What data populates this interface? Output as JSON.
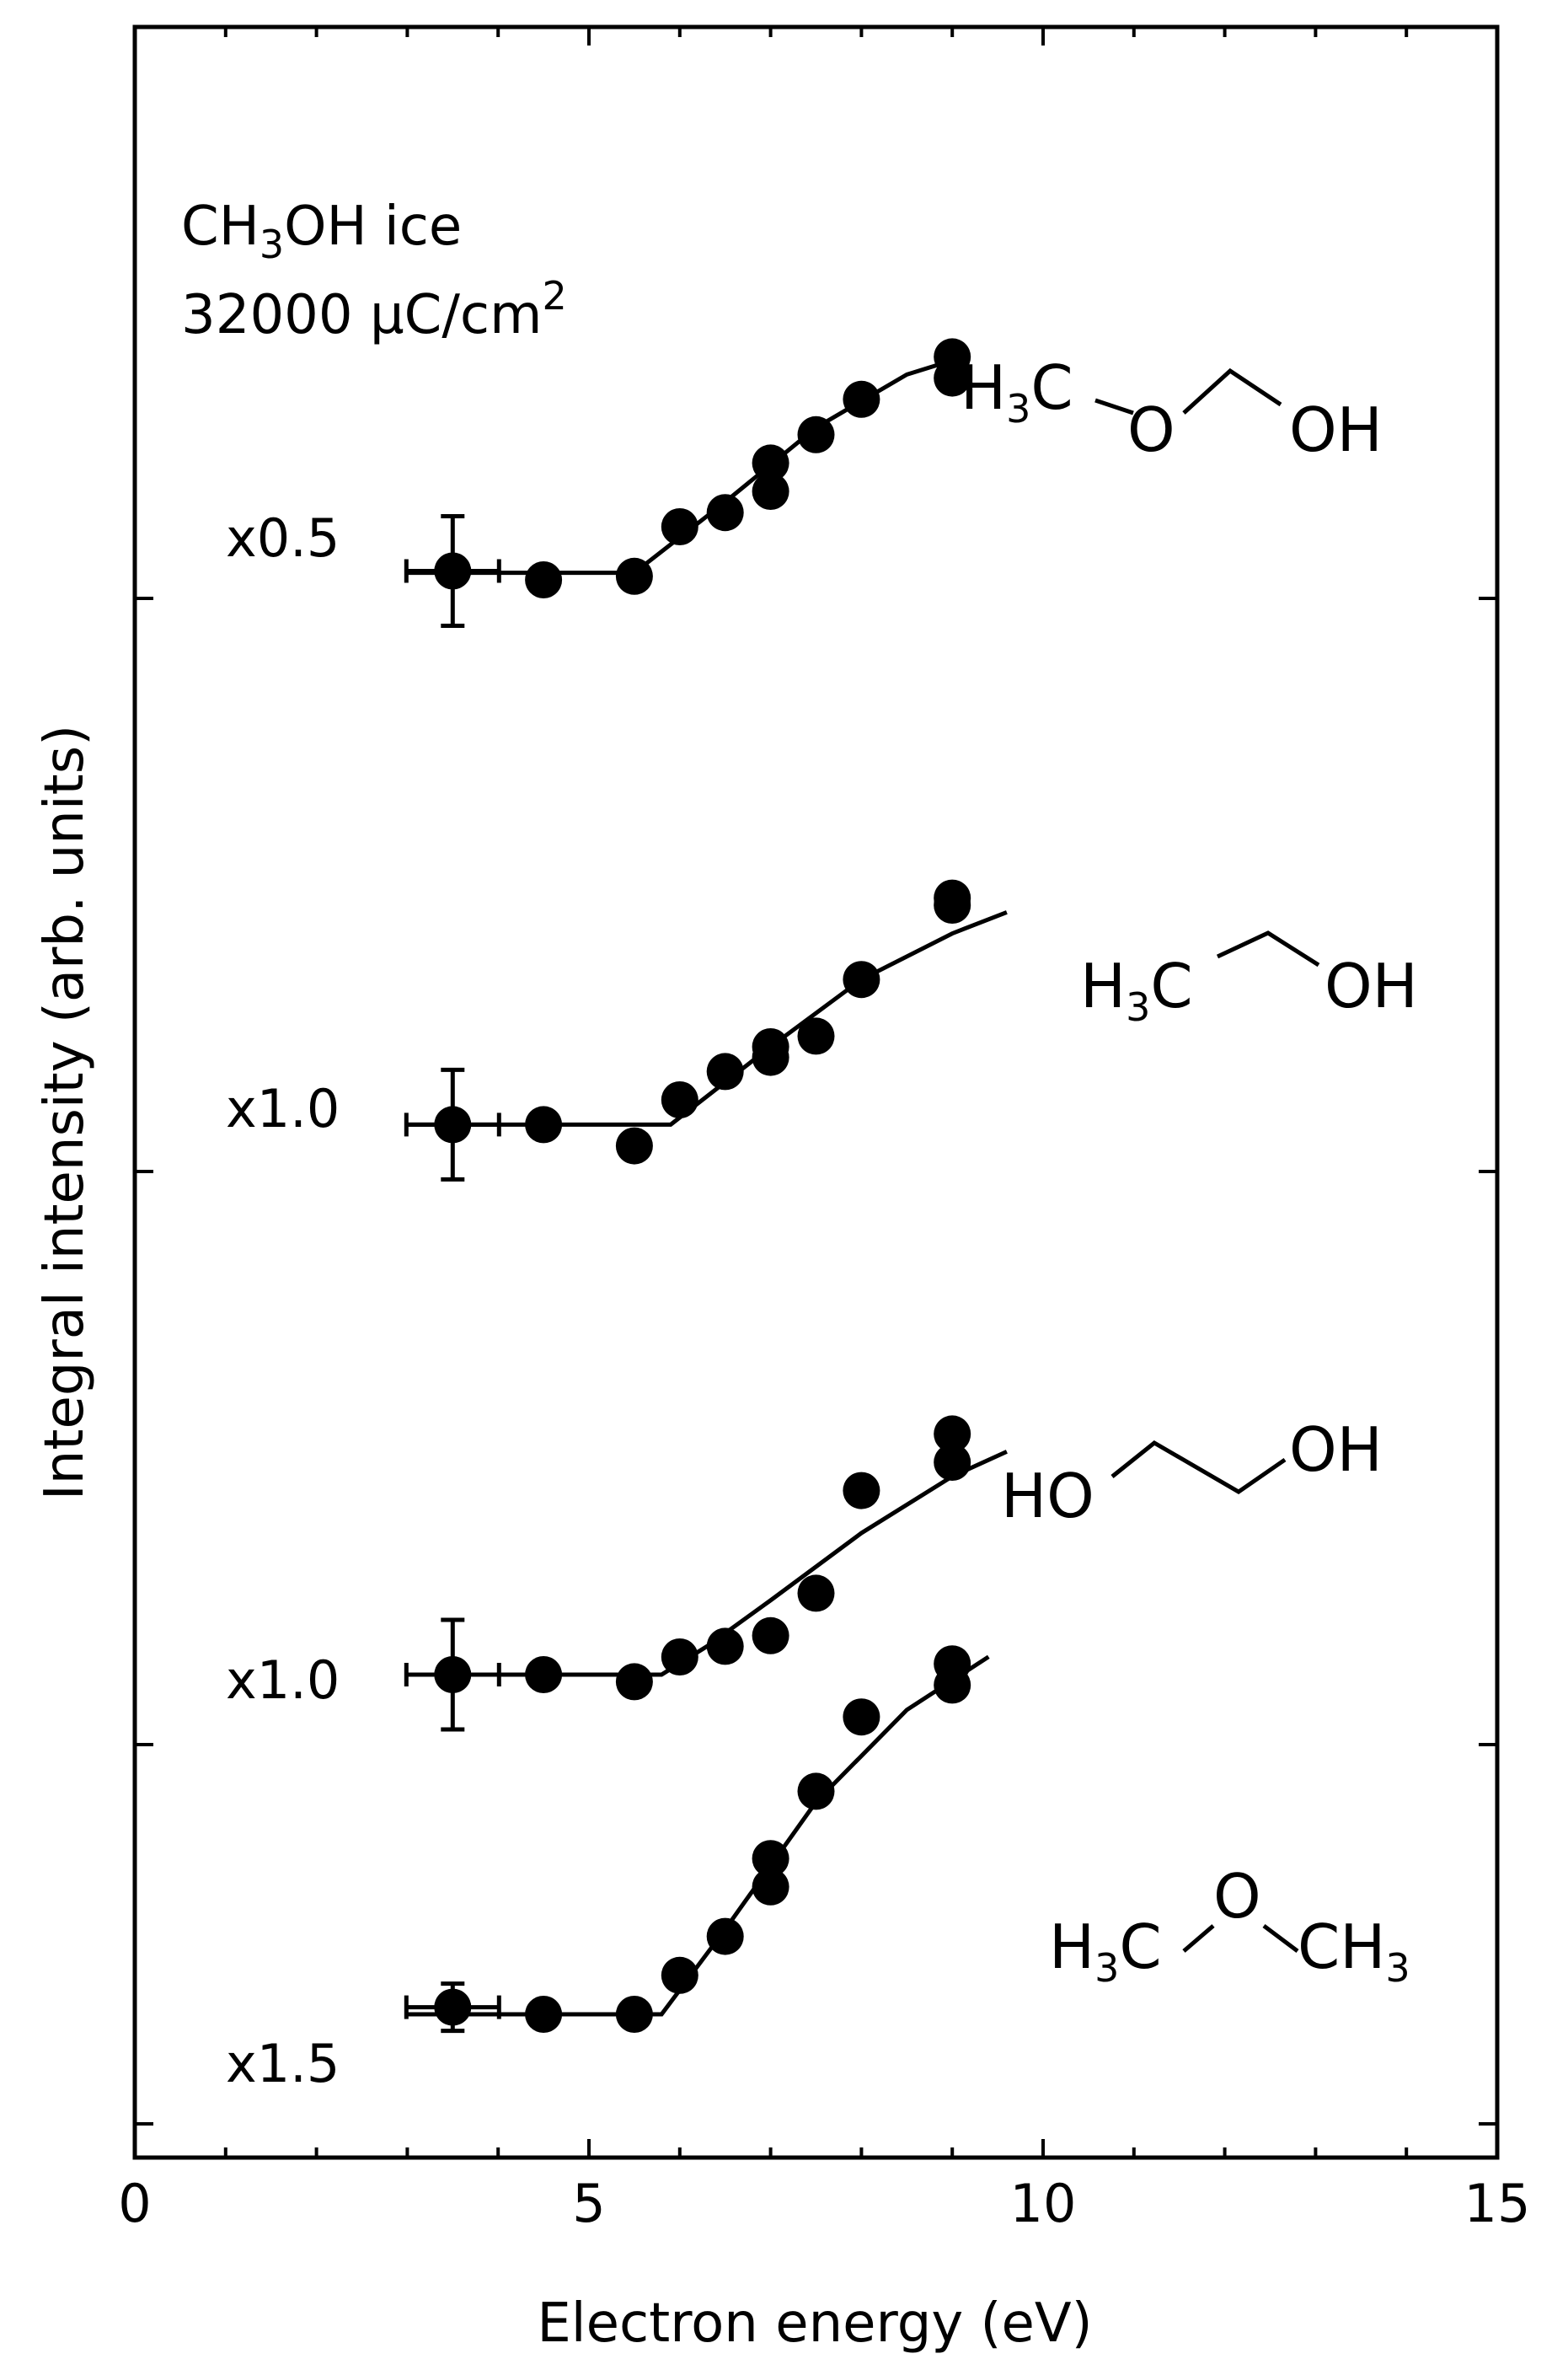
{
  "chart_data": {
    "type": "scatter",
    "xlabel": "Electron energy (eV)",
    "ylabel": "Integral intensity (arb. units)",
    "xlim": [
      0,
      15
    ],
    "xticks": [
      "0",
      "5",
      "10",
      "15"
    ],
    "grid": false,
    "annotation": {
      "sample_line1_main": "CH",
      "sample_line1_sub": "3",
      "sample_line1_rest": "OH ice",
      "sample_line2_main": "32000 μC/cm",
      "sample_line2_sup": "2"
    },
    "panels": [
      {
        "scale": "x0.5",
        "molecule": {
          "h3c_main": "H",
          "h3c_sub": "3",
          "h3c_c": "C",
          "o": "O",
          "oh": "OH"
        },
        "points": [
          {
            "x": 3.5,
            "y": 0.025
          },
          {
            "x": 4.5,
            "y": 0.0
          },
          {
            "x": 5.5,
            "y": 0.01
          },
          {
            "x": 6.0,
            "y": 0.15
          },
          {
            "x": 6.5,
            "y": 0.19
          },
          {
            "x": 7.0,
            "y": 0.25
          },
          {
            "x": 7.0,
            "y": 0.33
          },
          {
            "x": 7.5,
            "y": 0.41
          },
          {
            "x": 8.0,
            "y": 0.51
          },
          {
            "x": 9.0,
            "y": 0.57
          },
          {
            "x": 9.0,
            "y": 0.63
          }
        ],
        "fit": [
          [
            3.0,
            0.02
          ],
          [
            5.5,
            0.02
          ],
          [
            6.5,
            0.22
          ],
          [
            7.5,
            0.43
          ],
          [
            8.5,
            0.58
          ],
          [
            9.0,
            0.62
          ]
        ]
      },
      {
        "scale": "x1.0",
        "molecule": {
          "h3c_main": "H",
          "h3c_sub": "3",
          "h3c_c": "C",
          "oh": "OH"
        },
        "points": [
          {
            "x": 3.5,
            "y": 0.08
          },
          {
            "x": 4.5,
            "y": 0.08
          },
          {
            "x": 5.5,
            "y": 0.02
          },
          {
            "x": 6.0,
            "y": 0.15
          },
          {
            "x": 6.5,
            "y": 0.23
          },
          {
            "x": 7.0,
            "y": 0.27
          },
          {
            "x": 7.0,
            "y": 0.3
          },
          {
            "x": 7.5,
            "y": 0.33
          },
          {
            "x": 8.0,
            "y": 0.49
          },
          {
            "x": 9.0,
            "y": 0.7
          },
          {
            "x": 9.0,
            "y": 0.72
          }
        ],
        "fit": [
          [
            3.0,
            0.08
          ],
          [
            5.9,
            0.08
          ],
          [
            7.0,
            0.3
          ],
          [
            8.0,
            0.49
          ],
          [
            9.0,
            0.62
          ],
          [
            9.6,
            0.68
          ]
        ]
      },
      {
        "scale": "x1.0",
        "molecule": {
          "ho": "HO",
          "oh": "OH"
        },
        "points": [
          {
            "x": 3.5,
            "y": 0.15
          },
          {
            "x": 4.5,
            "y": 0.15
          },
          {
            "x": 5.5,
            "y": 0.13
          },
          {
            "x": 6.0,
            "y": 0.2
          },
          {
            "x": 6.5,
            "y": 0.23
          },
          {
            "x": 7.0,
            "y": 0.26
          },
          {
            "x": 7.5,
            "y": 0.38
          },
          {
            "x": 8.0,
            "y": 0.67
          },
          {
            "x": 9.0,
            "y": 0.75
          },
          {
            "x": 9.0,
            "y": 0.83
          }
        ],
        "fit": [
          [
            3.0,
            0.15
          ],
          [
            5.8,
            0.15
          ],
          [
            6.3,
            0.23
          ],
          [
            7.0,
            0.36
          ],
          [
            8.0,
            0.55
          ],
          [
            9.0,
            0.71
          ],
          [
            9.6,
            0.78
          ]
        ]
      },
      {
        "scale": "x1.5",
        "molecule": {
          "h3c_main": "H",
          "h3c_sub": "3",
          "h3c_c": "C",
          "o": "O",
          "ch3_main": "CH",
          "ch3_sub": "3"
        },
        "points": [
          {
            "x": 3.5,
            "y": 0.12
          },
          {
            "x": 4.5,
            "y": 0.1
          },
          {
            "x": 5.5,
            "y": 0.1
          },
          {
            "x": 6.0,
            "y": 0.21
          },
          {
            "x": 6.5,
            "y": 0.32
          },
          {
            "x": 7.0,
            "y": 0.46
          },
          {
            "x": 7.0,
            "y": 0.54
          },
          {
            "x": 7.5,
            "y": 0.73
          },
          {
            "x": 8.0,
            "y": 0.94
          },
          {
            "x": 9.0,
            "y": 1.03
          },
          {
            "x": 9.0,
            "y": 1.09
          }
        ],
        "fit": [
          [
            3.0,
            0.1
          ],
          [
            5.8,
            0.1
          ],
          [
            6.5,
            0.34
          ],
          [
            7.5,
            0.7
          ],
          [
            8.5,
            0.96
          ],
          [
            9.4,
            1.11
          ]
        ]
      }
    ]
  }
}
